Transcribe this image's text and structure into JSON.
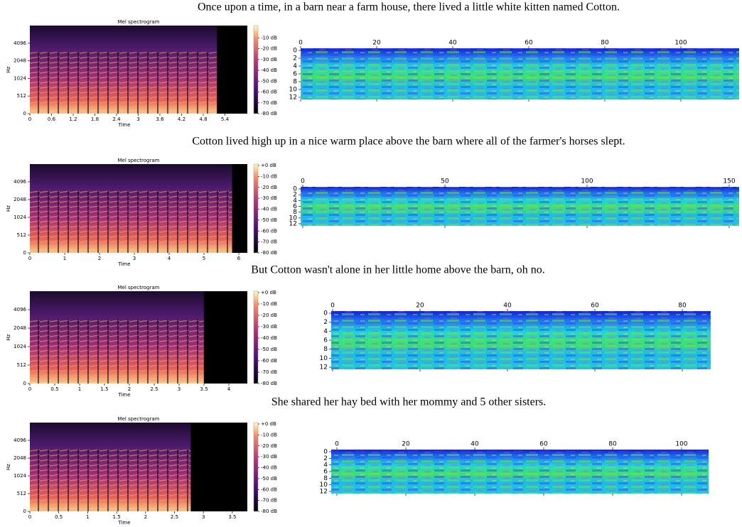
{
  "rows": [
    {
      "caption": "Once upon a time, in a barn near a farm house, there lived a little white kitten named Cotton.",
      "spectrogram": {
        "title": "Mel spectrogram",
        "xlabel": "Time",
        "ylabel": "Hz",
        "xticks": [
          "0",
          "0.6",
          "1.2",
          "1.8",
          "2.4",
          "3",
          "3.6",
          "4.2",
          "4.8",
          "5.4"
        ],
        "yticks": [
          "0",
          "512",
          "1024",
          "2048",
          "4096"
        ]
      },
      "colorbar": [
        "-10 dB",
        "-20 dB",
        "-30 dB",
        "-40 dB",
        "-50 dB",
        "-60 dB",
        "-70 dB",
        "-80 dB"
      ],
      "heatmap": {
        "xticks": [
          "0",
          "20",
          "40",
          "60",
          "80",
          "100"
        ],
        "yticks": [
          "0",
          "2",
          "4",
          "6",
          "8",
          "10",
          "12"
        ]
      }
    },
    {
      "caption": "Cotton lived high up in a nice warm place above the barn where all of the farmer's horses slept.",
      "spectrogram": {
        "title": "Mel spectrogram",
        "xlabel": "Time",
        "ylabel": "Hz",
        "xticks": [
          "0",
          "1",
          "2",
          "3",
          "4",
          "5",
          "6"
        ],
        "yticks": [
          "0",
          "512",
          "1024",
          "2048",
          "4096"
        ]
      },
      "colorbar": [
        "+0 dB",
        "-10 dB",
        "-20 dB",
        "-30 dB",
        "-40 dB",
        "-50 dB",
        "-60 dB",
        "-70 dB",
        "-80 dB"
      ],
      "heatmap": {
        "xticks": [
          "0",
          "50",
          "100",
          "150"
        ],
        "yticks": [
          "0",
          "2",
          "4",
          "6",
          "8",
          "10",
          "12"
        ]
      }
    },
    {
      "caption": "But Cotton wasn't alone in her little home above the barn, oh no.",
      "spectrogram": {
        "title": "Mel spectrogram",
        "xlabel": "Time",
        "ylabel": "Hz",
        "xticks": [
          "0",
          "0.5",
          "1",
          "1.5",
          "2",
          "2.5",
          "3",
          "3.5",
          "4"
        ],
        "yticks": [
          "0",
          "512",
          "1024",
          "2048",
          "4096"
        ]
      },
      "colorbar": [
        "+0 dB",
        "-10 dB",
        "-20 dB",
        "-30 dB",
        "-40 dB",
        "-50 dB",
        "-60 dB",
        "-70 dB",
        "-80 dB"
      ],
      "heatmap": {
        "xticks": [
          "0",
          "20",
          "40",
          "60",
          "80"
        ],
        "yticks": [
          "0",
          "2",
          "4",
          "6",
          "8",
          "10",
          "12"
        ]
      }
    },
    {
      "caption": "She shared her hay bed with her mommy and 5 other sisters.",
      "spectrogram": {
        "title": "Mel spectrogram",
        "xlabel": "Time",
        "ylabel": "Hz",
        "xticks": [
          "0",
          "0.5",
          "1",
          "1.5",
          "2",
          "2.5",
          "3",
          "3.5"
        ],
        "yticks": [
          "0",
          "512",
          "1024",
          "2048",
          "4096"
        ]
      },
      "colorbar": [
        "+0 dB",
        "-10 dB",
        "-20 dB",
        "-30 dB",
        "-40 dB",
        "-50 dB",
        "-60 dB",
        "-70 dB",
        "-80 dB"
      ],
      "heatmap": {
        "xticks": [
          "0",
          "20",
          "40",
          "60",
          "80",
          "100"
        ],
        "yticks": [
          "0",
          "2",
          "4",
          "6",
          "8",
          "10",
          "12"
        ]
      }
    }
  ]
}
